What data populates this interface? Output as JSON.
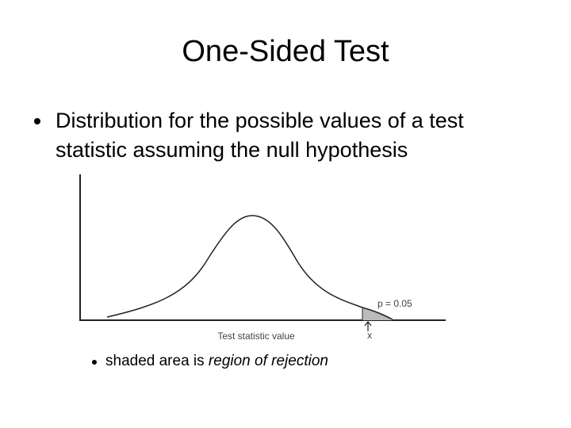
{
  "slide": {
    "title": "One-Sided Test",
    "bullets": [
      "Distribution for the possible values of a test statistic assuming the null hypothesis"
    ],
    "figure": {
      "x_label": "Test statistic value",
      "annotation": "p = 0.05",
      "marker": "x"
    },
    "sub_bullet": {
      "text": "shaded area is ",
      "emphasis": "region of rejection"
    }
  }
}
